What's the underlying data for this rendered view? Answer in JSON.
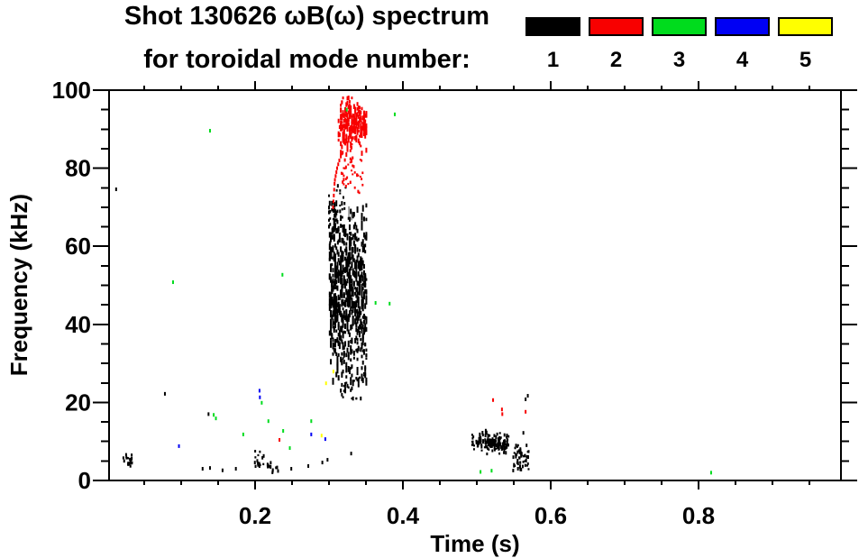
{
  "chart_data": {
    "type": "scatter",
    "title_line1": "Shot 130626 ωB(ω) spectrum",
    "title_line2": "for toroidal mode number:",
    "xlabel": "Time (s)",
    "ylabel": "Frequency (kHz)",
    "xlim": [
      0,
      0.993
    ],
    "ylim": [
      0,
      100
    ],
    "grid": false,
    "legend_position": "top",
    "x_major_ticks": [
      {
        "v": 0.2,
        "label": "0.2"
      },
      {
        "v": 0.4,
        "label": "0.4"
      },
      {
        "v": 0.6,
        "label": "0.6"
      },
      {
        "v": 0.8,
        "label": "0.8"
      }
    ],
    "x_minor_step": 0.05,
    "y_major_ticks": [
      {
        "v": 0,
        "label": "0"
      },
      {
        "v": 20,
        "label": "20"
      },
      {
        "v": 40,
        "label": "40"
      },
      {
        "v": 60,
        "label": "60"
      },
      {
        "v": 80,
        "label": "80"
      },
      {
        "v": 100,
        "label": "100"
      }
    ],
    "y_minor_step": 5,
    "legend": {
      "entries": [
        {
          "label": "1",
          "color": "#000000"
        },
        {
          "label": "2",
          "color": "#f80000"
        },
        {
          "label": "3",
          "color": "#00dc1d"
        },
        {
          "label": "4",
          "color": "#0000f4"
        },
        {
          "label": "5",
          "color": "#ffff00"
        }
      ]
    },
    "series": [
      {
        "name": "mode 1",
        "mode": 1,
        "color": "#000000",
        "clusters": [
          {
            "seed": 11,
            "n": 680,
            "t": [
              0.301,
              0.351
            ],
            "f_mean": 48,
            "f_sigma": 10,
            "f_range": [
              25,
              71
            ],
            "quantize": 0.0015,
            "h": [
              3,
              8
            ]
          },
          {
            "seed": 12,
            "n": 55,
            "t": [
              0.3,
              0.323
            ],
            "f_mean": 66,
            "f_sigma": 5,
            "f_range": [
              57,
              77
            ],
            "quantize": 0.0015,
            "h": [
              2,
              5
            ]
          },
          {
            "seed": 13,
            "n": 45,
            "t": [
              0.316,
              0.352
            ],
            "f_mean": 26,
            "f_sigma": 3,
            "f_range": [
              21,
              33
            ],
            "quantize": 0.0015,
            "h": [
              2,
              5
            ]
          },
          {
            "seed": 14,
            "n": 120,
            "t": [
              0.501,
              0.543
            ],
            "f_mean": 9.8,
            "f_sigma": 1.4,
            "f_range": [
              6.8,
              13
            ],
            "h": [
              2,
              5
            ]
          },
          {
            "seed": 15,
            "n": 14,
            "t": [
              0.492,
              0.504
            ],
            "f_mean": 10,
            "f_sigma": 1.2,
            "f_range": [
              8,
              12
            ],
            "h": [
              2,
              3
            ]
          },
          {
            "seed": 16,
            "n": 55,
            "t": [
              0.549,
              0.571
            ],
            "f_mean": 5.5,
            "f_sigma": 1.7,
            "f_range": [
              2.5,
              9
            ],
            "h": [
              2,
              4
            ]
          },
          {
            "seed": 17,
            "n": 22,
            "t": [
              0.021,
              0.034
            ],
            "f_mean": 5.5,
            "f_sigma": 1.2,
            "f_range": [
              3.5,
              8
            ],
            "h": [
              2,
              4
            ]
          },
          {
            "seed": 18,
            "n": 16,
            "t": [
              0.199,
              0.212
            ],
            "f_mean": 4.8,
            "f_sigma": 1.4,
            "f_range": [
              2.5,
              7.5
            ],
            "h": [
              2,
              4
            ]
          },
          {
            "seed": 19,
            "n": 13,
            "t": [
              0.216,
              0.232
            ],
            "f_mean": 4.0,
            "f_sigma": 1.3,
            "f_range": [
              2,
              6.5
            ],
            "h": [
              2,
              4
            ]
          }
        ],
        "points": [
          [
            0.012,
            74.6
          ],
          [
            0.078,
            22.2
          ],
          [
            0.137,
            17.0
          ],
          [
            0.129,
            3.0
          ],
          [
            0.139,
            3.2
          ],
          [
            0.156,
            2.6
          ],
          [
            0.174,
            3.0
          ],
          [
            0.221,
            3.5
          ],
          [
            0.249,
            3.0
          ],
          [
            0.272,
            3.7
          ],
          [
            0.291,
            4.6
          ],
          [
            0.298,
            5.3
          ],
          [
            0.33,
            6.9
          ],
          [
            0.56,
            2.8
          ],
          [
            0.563,
            12.2
          ],
          [
            0.566,
            20.8
          ],
          [
            0.569,
            21.7
          ]
        ]
      },
      {
        "name": "mode 2",
        "mode": 2,
        "color": "#f80000",
        "clusters": [
          {
            "seed": 21,
            "n": 270,
            "t": [
              0.313,
              0.351
            ],
            "f_mean": 91,
            "f_sigma": 3.2,
            "f_range": [
              83.5,
              98
            ],
            "quantize": 0.0015,
            "h": [
              2,
              6
            ]
          },
          {
            "seed": 22,
            "n": 40,
            "t": [
              0.317,
              0.346
            ],
            "f_mean": 80,
            "f_sigma": 3.0,
            "f_range": [
              73.5,
              86
            ],
            "quantize": 0.0015,
            "h": [
              2,
              4
            ]
          }
        ],
        "points": [
          [
            0.3055,
            70.0
          ],
          [
            0.306,
            71.5
          ],
          [
            0.3065,
            73.0
          ],
          [
            0.307,
            74.5
          ],
          [
            0.3075,
            76.0
          ],
          [
            0.308,
            77.0
          ],
          [
            0.309,
            78.0
          ],
          [
            0.31,
            79.0
          ],
          [
            0.311,
            80.0
          ],
          [
            0.3125,
            81.0
          ],
          [
            0.314,
            82.0
          ],
          [
            0.316,
            83.0
          ],
          [
            0.3185,
            84.0
          ],
          [
            0.233,
            10.4
          ],
          [
            0.522,
            20.6
          ],
          [
            0.534,
            18.2
          ],
          [
            0.5345,
            17.0
          ],
          [
            0.566,
            17.6
          ]
        ]
      },
      {
        "name": "mode 3",
        "mode": 3,
        "color": "#00dc1d",
        "clusters": [],
        "points": [
          [
            0.139,
            89.6
          ],
          [
            0.324,
            95.0
          ],
          [
            0.389,
            93.8
          ],
          [
            0.089,
            50.8
          ],
          [
            0.237,
            52.7
          ],
          [
            0.363,
            45.5
          ],
          [
            0.382,
            45.3
          ],
          [
            0.209,
            19.9
          ],
          [
            0.144,
            16.8
          ],
          [
            0.147,
            15.9
          ],
          [
            0.218,
            15.2
          ],
          [
            0.276,
            15.2
          ],
          [
            0.184,
            11.8
          ],
          [
            0.238,
            12.7
          ],
          [
            0.247,
            8.3
          ],
          [
            0.505,
            2.2
          ],
          [
            0.52,
            2.5
          ],
          [
            0.817,
            2.0
          ]
        ]
      },
      {
        "name": "mode 4",
        "mode": 4,
        "color": "#0000f4",
        "clusters": [],
        "points": [
          [
            0.206,
            23.0
          ],
          [
            0.2065,
            21.3
          ],
          [
            0.097,
            8.8
          ],
          [
            0.276,
            11.8
          ],
          [
            0.295,
            10.6
          ]
        ]
      },
      {
        "name": "mode 5",
        "mode": 5,
        "color": "#ffff00",
        "clusters": [],
        "points": [
          [
            0.29,
            11.5
          ],
          [
            0.296,
            24.9
          ],
          [
            0.306,
            27.9
          ]
        ]
      }
    ],
    "artifacts": {
      "color": "#9e9e9e",
      "points": [
        [
          0.327,
          68.6,
          14
        ],
        [
          0.3305,
          67.8,
          10
        ],
        [
          0.346,
          45.8,
          6
        ]
      ]
    }
  }
}
